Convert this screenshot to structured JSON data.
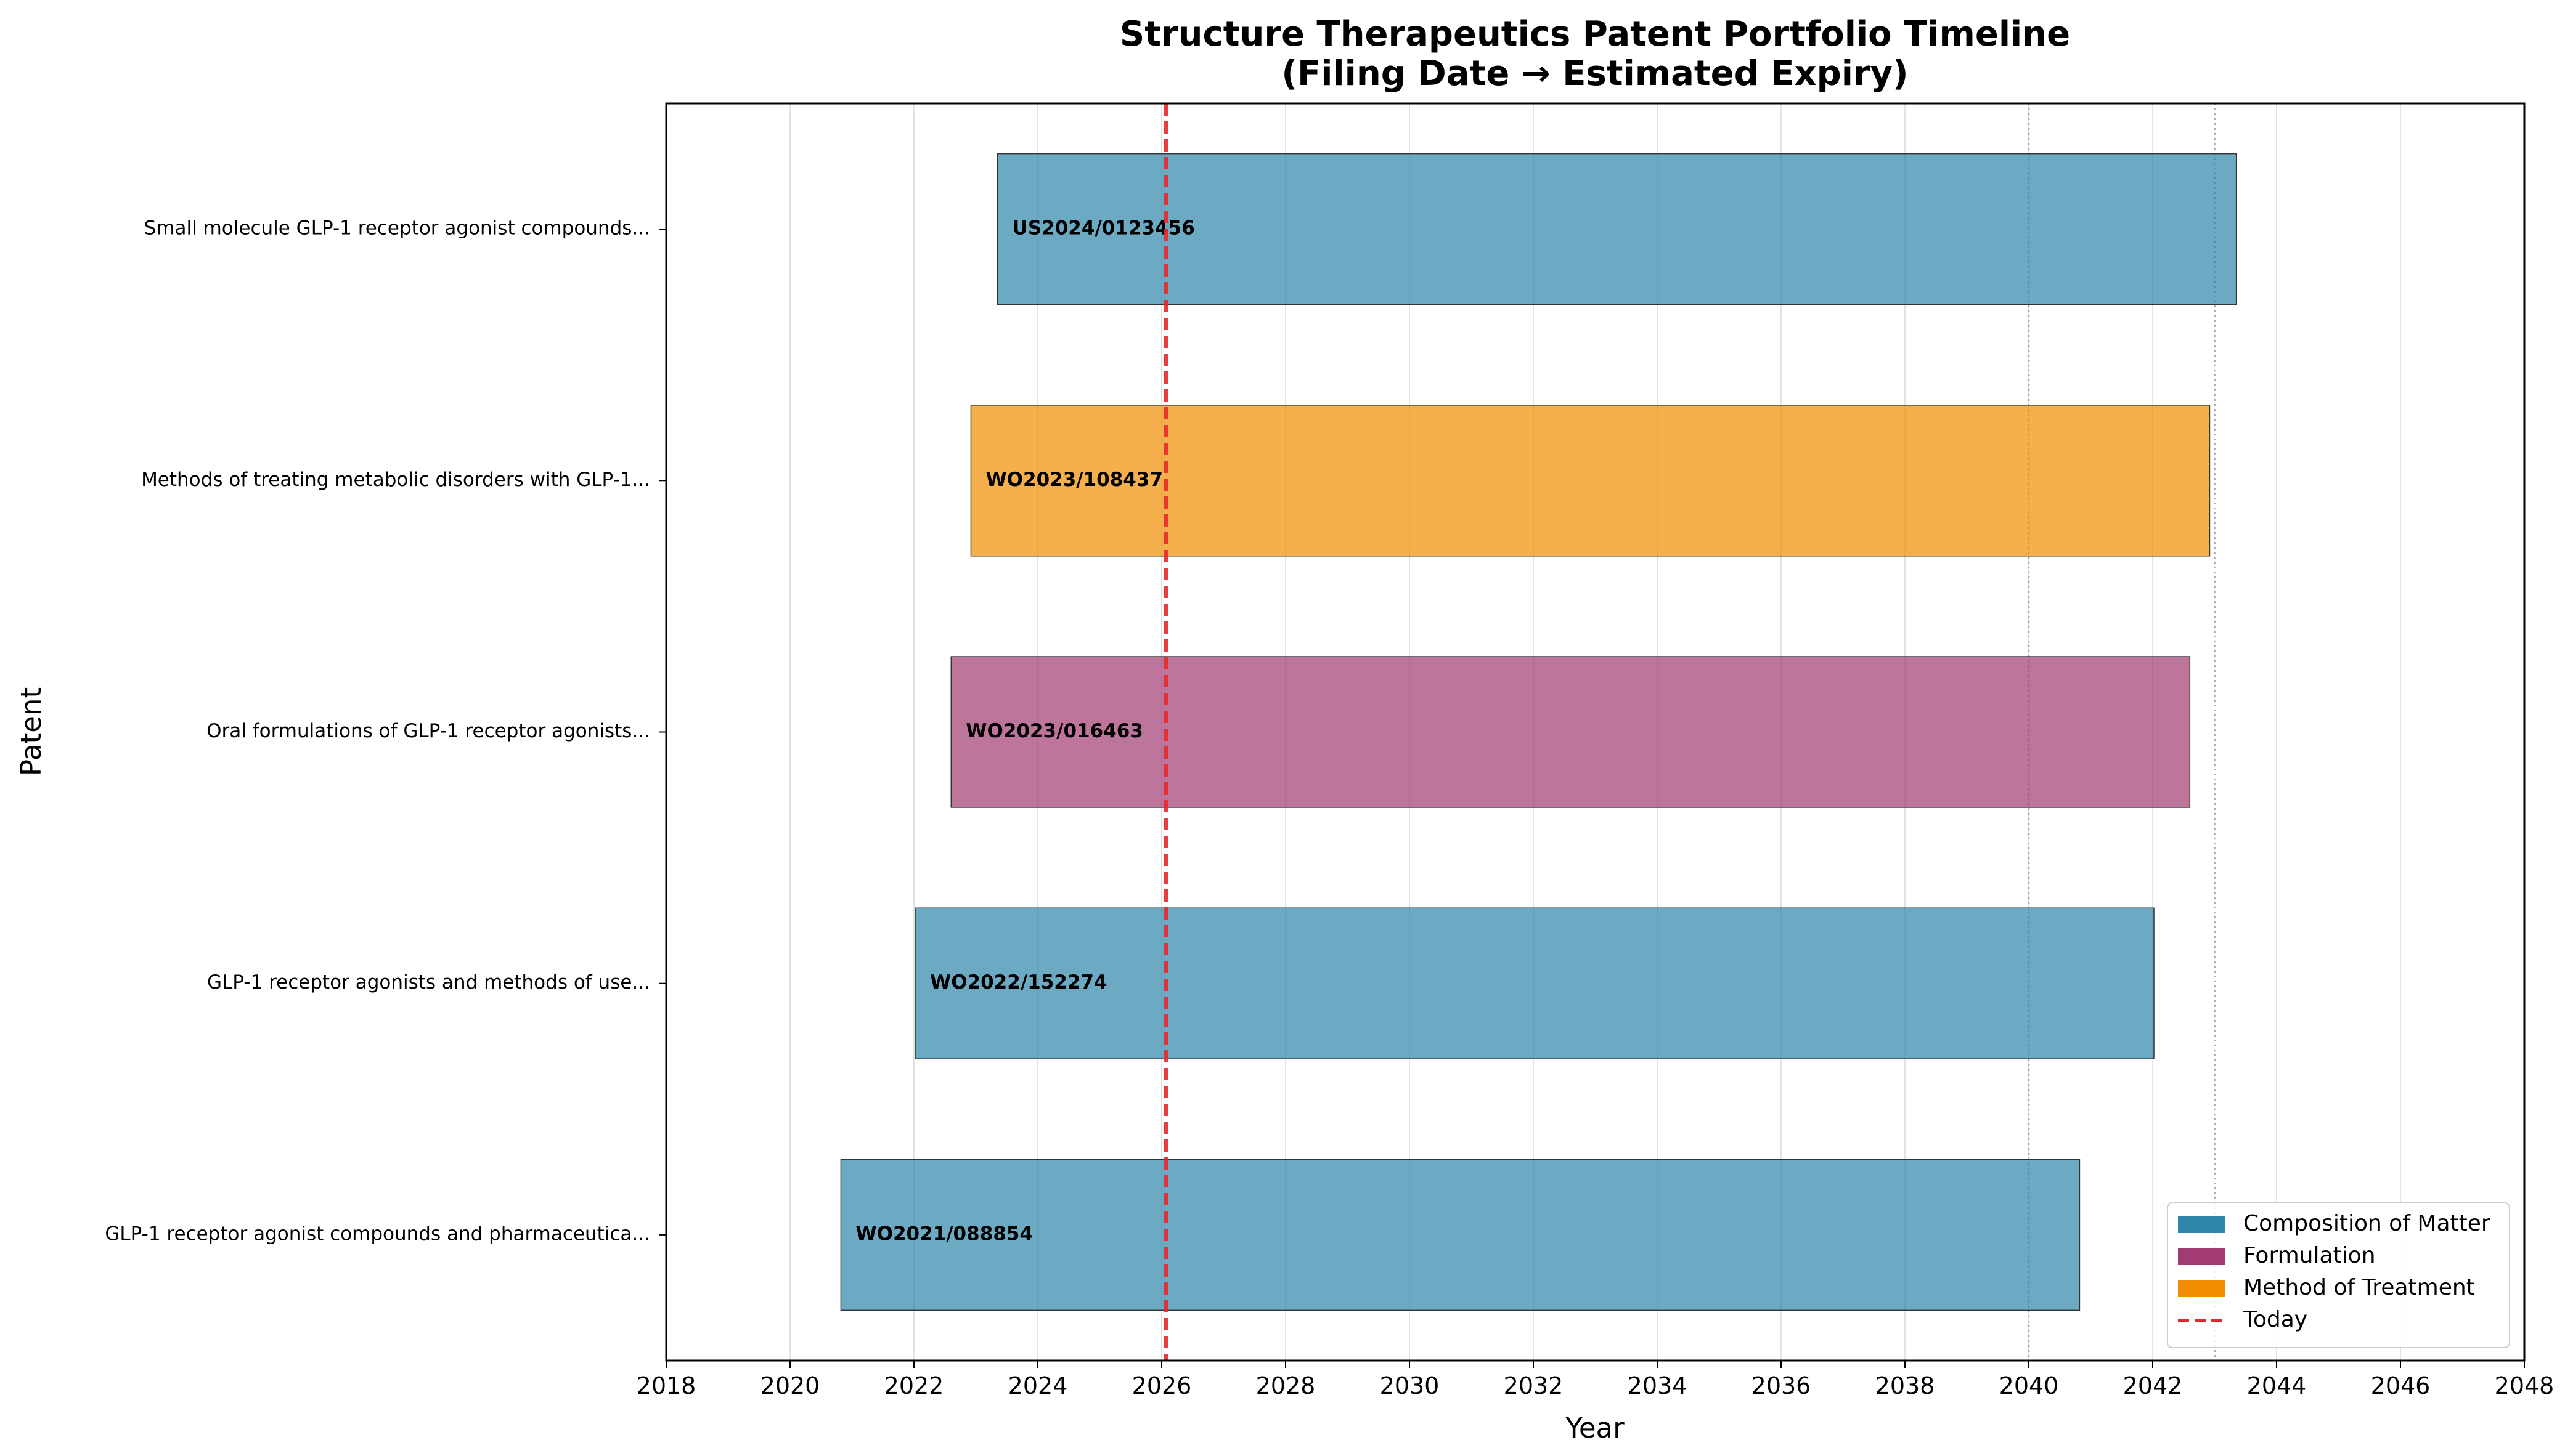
{
  "chart_data": {
    "type": "bar",
    "orientation": "horizontal",
    "title": "Structure Therapeutics Patent Portfolio Timeline",
    "subtitle": "(Filing Date → Estimated Expiry)",
    "xlabel": "Year",
    "ylabel": "Patent",
    "xlim": [
      2018,
      2048
    ],
    "xticks": [
      2018,
      2020,
      2022,
      2024,
      2026,
      2028,
      2030,
      2032,
      2034,
      2036,
      2038,
      2040,
      2042,
      2044,
      2046,
      2048
    ],
    "grid": "x",
    "today": 2026.07,
    "reference_lines": [
      2040,
      2043
    ],
    "legend_position": "bottom-right",
    "colors": {
      "Composition of Matter": "#2e86ab",
      "Formulation": "#a23b72",
      "Method of Treatment": "#f18f01",
      "Today": "#e8282a"
    },
    "legend": [
      "Composition of Matter",
      "Formulation",
      "Method of Treatment",
      "Today"
    ],
    "patents": [
      {
        "label": "Small molecule GLP-1 receptor agonist compounds...",
        "id": "US2024/0123456",
        "category": "Composition of Matter",
        "filing": 2023.35,
        "expiry": 2043.35
      },
      {
        "label": "Methods of treating metabolic disorders with GLP-1...",
        "id": "WO2023/108437",
        "category": "Method of Treatment",
        "filing": 2022.92,
        "expiry": 2042.92
      },
      {
        "label": "Oral formulations of GLP-1 receptor agonists...",
        "id": "WO2023/016463",
        "category": "Formulation",
        "filing": 2022.6,
        "expiry": 2042.6
      },
      {
        "label": "GLP-1 receptor agonists and methods of use...",
        "id": "WO2022/152274",
        "category": "Composition of Matter",
        "filing": 2022.02,
        "expiry": 2042.02
      },
      {
        "label": "GLP-1 receptor agonist compounds and pharmaceutica...",
        "id": "WO2021/088854",
        "category": "Composition of Matter",
        "filing": 2020.82,
        "expiry": 2040.82
      }
    ]
  }
}
